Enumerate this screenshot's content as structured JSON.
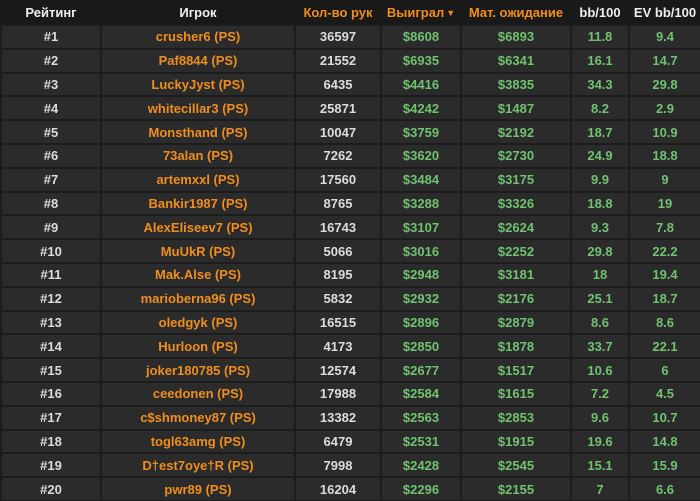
{
  "table": {
    "columns": [
      {
        "key": "rank",
        "label": "Рейтинг",
        "accent": false
      },
      {
        "key": "player",
        "label": "Игрок",
        "accent": false
      },
      {
        "key": "hands",
        "label": "Кол-во рук",
        "accent": true
      },
      {
        "key": "won",
        "label": "Выиграл",
        "accent": true,
        "sorted": "desc"
      },
      {
        "key": "ev",
        "label": "Мат. ожидание",
        "accent": true
      },
      {
        "key": "bb100",
        "label": "bb/100",
        "accent": false
      },
      {
        "key": "evbb100",
        "label": "EV bb/100",
        "accent": false
      }
    ],
    "sort_icon": "▼",
    "rows": [
      {
        "rank": "#1",
        "player": "crusher6 (PS)",
        "hands": "36597",
        "won": "$8608",
        "ev": "$6893",
        "bb100": "11.8",
        "evbb100": "9.4"
      },
      {
        "rank": "#2",
        "player": "Paf8844 (PS)",
        "hands": "21552",
        "won": "$6935",
        "ev": "$6341",
        "bb100": "16.1",
        "evbb100": "14.7"
      },
      {
        "rank": "#3",
        "player": "LuckyJyst (PS)",
        "hands": "6435",
        "won": "$4416",
        "ev": "$3835",
        "bb100": "34.3",
        "evbb100": "29.8"
      },
      {
        "rank": "#4",
        "player": "whitecillar3 (PS)",
        "hands": "25871",
        "won": "$4242",
        "ev": "$1487",
        "bb100": "8.2",
        "evbb100": "2.9"
      },
      {
        "rank": "#5",
        "player": "Monsthand (PS)",
        "hands": "10047",
        "won": "$3759",
        "ev": "$2192",
        "bb100": "18.7",
        "evbb100": "10.9"
      },
      {
        "rank": "#6",
        "player": "73alan (PS)",
        "hands": "7262",
        "won": "$3620",
        "ev": "$2730",
        "bb100": "24.9",
        "evbb100": "18.8"
      },
      {
        "rank": "#7",
        "player": "artemxxl (PS)",
        "hands": "17560",
        "won": "$3484",
        "ev": "$3175",
        "bb100": "9.9",
        "evbb100": "9"
      },
      {
        "rank": "#8",
        "player": "Bankir1987 (PS)",
        "hands": "8765",
        "won": "$3288",
        "ev": "$3326",
        "bb100": "18.8",
        "evbb100": "19"
      },
      {
        "rank": "#9",
        "player": "AlexEliseev7 (PS)",
        "hands": "16743",
        "won": "$3107",
        "ev": "$2624",
        "bb100": "9.3",
        "evbb100": "7.8"
      },
      {
        "rank": "#10",
        "player": "MuUkR (PS)",
        "hands": "5066",
        "won": "$3016",
        "ev": "$2252",
        "bb100": "29.8",
        "evbb100": "22.2"
      },
      {
        "rank": "#11",
        "player": "Mak.Alse (PS)",
        "hands": "8195",
        "won": "$2948",
        "ev": "$3181",
        "bb100": "18",
        "evbb100": "19.4"
      },
      {
        "rank": "#12",
        "player": "marioberna96 (PS)",
        "hands": "5832",
        "won": "$2932",
        "ev": "$2176",
        "bb100": "25.1",
        "evbb100": "18.7"
      },
      {
        "rank": "#13",
        "player": "oledgyk (PS)",
        "hands": "16515",
        "won": "$2896",
        "ev": "$2879",
        "bb100": "8.6",
        "evbb100": "8.6"
      },
      {
        "rank": "#14",
        "player": "Hurloon (PS)",
        "hands": "4173",
        "won": "$2850",
        "ev": "$1878",
        "bb100": "33.7",
        "evbb100": "22.1"
      },
      {
        "rank": "#15",
        "player": "joker180785 (PS)",
        "hands": "12574",
        "won": "$2677",
        "ev": "$1517",
        "bb100": "10.6",
        "evbb100": "6"
      },
      {
        "rank": "#16",
        "player": "ceedonen (PS)",
        "hands": "17988",
        "won": "$2584",
        "ev": "$1615",
        "bb100": "7.2",
        "evbb100": "4.5"
      },
      {
        "rank": "#17",
        "player": "c$shmoney87 (PS)",
        "hands": "13382",
        "won": "$2563",
        "ev": "$2853",
        "bb100": "9.6",
        "evbb100": "10.7"
      },
      {
        "rank": "#18",
        "player": "togl63amg (PS)",
        "hands": "6479",
        "won": "$2531",
        "ev": "$1915",
        "bb100": "19.6",
        "evbb100": "14.8"
      },
      {
        "rank": "#19",
        "player": "D†est7oye†R (PS)",
        "hands": "7998",
        "won": "$2428",
        "ev": "$2545",
        "bb100": "15.1",
        "evbb100": "15.9"
      },
      {
        "rank": "#20",
        "player": "pwr89 (PS)",
        "hands": "16204",
        "won": "$2296",
        "ev": "$2155",
        "bb100": "7",
        "evbb100": "6.6"
      }
    ]
  },
  "colors": {
    "accent_orange": "#ef8e1f",
    "value_green": "#70c271",
    "row_background": "#2b2b2b",
    "header_background": "#191919",
    "grid_line": "#1c1c1c",
    "neutral_text": "#dcdcdc"
  }
}
